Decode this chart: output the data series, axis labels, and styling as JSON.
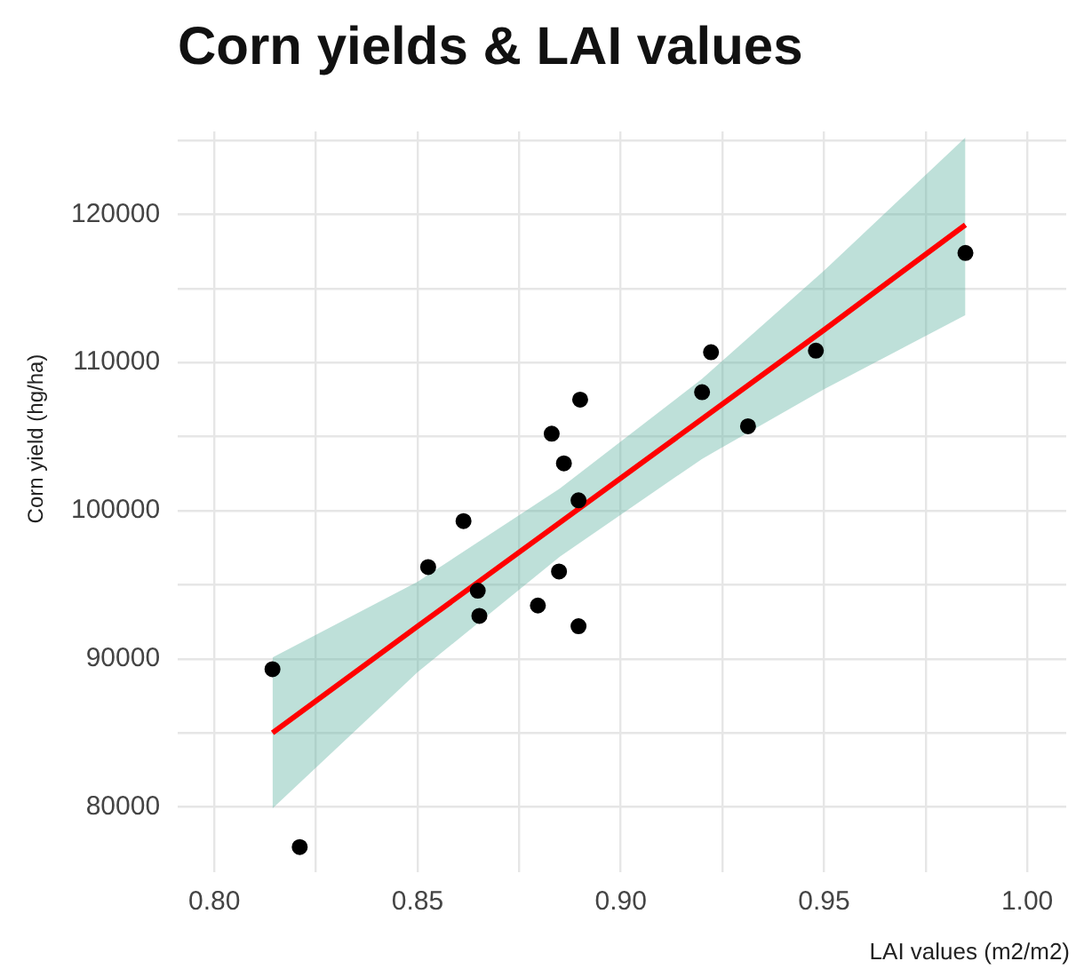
{
  "chart_data": {
    "type": "scatter",
    "title": "Corn yields & LAI values",
    "xlabel": "LAI values (m2/m2)",
    "ylabel": "Corn yield (hg/ha)",
    "xlim": [
      0.791,
      1.0096
    ],
    "ylim": [
      75600,
      125600
    ],
    "xticks": [
      {
        "value": 0.8,
        "label": "0.80"
      },
      {
        "value": 0.825,
        "label": null
      },
      0.85,
      {
        "value": 0.875,
        "label": null
      },
      {
        "value": 0.9,
        "label": "0.90"
      },
      {
        "value": 0.925,
        "label": null
      },
      0.95,
      {
        "value": 0.975,
        "label": null
      },
      {
        "value": 1,
        "label": "1.00"
      }
    ],
    "yticks": [
      80000,
      {
        "value": 85000,
        "label": null
      },
      90000,
      {
        "value": 95000,
        "label": null
      },
      100000,
      {
        "value": 105000,
        "label": null
      },
      110000,
      {
        "value": 115000,
        "label": null
      },
      120000,
      {
        "value": 125000,
        "label": null
      }
    ],
    "grid": true,
    "legend": false,
    "series": [
      {
        "color": "#000000",
        "marker": "circle",
        "x": [
          0.8143,
          0.821,
          0.8526,
          0.8613,
          0.8648,
          0.8652,
          0.8796,
          0.883,
          0.8848,
          0.886,
          0.8896,
          0.89,
          0.8896,
          0.92,
          0.9222,
          0.9313,
          0.948,
          0.9848
        ],
        "values": [
          89300,
          77300,
          96200,
          99300,
          94600,
          92900,
          93600,
          105200,
          95900,
          103200,
          100700,
          107500,
          92200,
          108000,
          110700,
          105700,
          110800,
          117400
        ]
      },
      {
        "type": "line",
        "color": "#ff0000",
        "marker": "none",
        "x": [
          0.8143,
          0.85,
          0.885,
          0.92,
          0.95,
          0.9848
        ],
        "values": [
          85000,
          92200,
          99200,
          106200,
          112200,
          119300
        ],
        "lower": [
          79900,
          89100,
          96900,
          103500,
          108200,
          113200
        ],
        "upper": [
          90100,
          95200,
          101500,
          108900,
          116200,
          125200
        ]
      }
    ]
  }
}
